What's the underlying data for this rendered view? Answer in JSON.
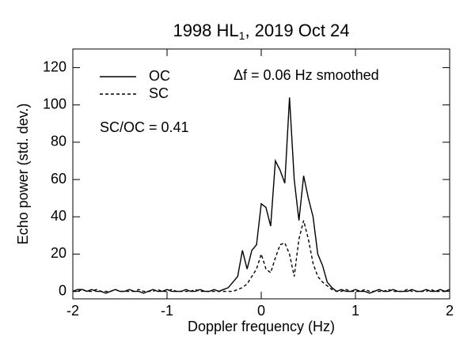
{
  "chart_data": {
    "type": "line",
    "title_parts": [
      "1998 HL",
      "1",
      ", 2019 Oct 24"
    ],
    "x_label": "Doppler frequency (Hz)",
    "y_label": "Echo power (std. dev.)",
    "annotations": [
      "Δf = 0.06 Hz smoothed",
      "SC/OC = 0.41"
    ],
    "legend": "upper left",
    "xlim": [
      -2,
      2
    ],
    "ylim": [
      -4,
      130
    ],
    "xticks": [
      -2,
      -1,
      0,
      1,
      2
    ],
    "yticks": [
      0,
      20,
      40,
      60,
      80,
      100,
      120
    ],
    "x": [
      -2,
      -1.95,
      -1.9,
      -1.85,
      -1.8,
      -1.75,
      -1.7,
      -1.65,
      -1.6,
      -1.55,
      -1.5,
      -1.45,
      -1.4,
      -1.35,
      -1.3,
      -1.25,
      -1.2,
      -1.15,
      -1.1,
      -1.05,
      -1,
      -0.95,
      -0.9,
      -0.85,
      -0.8,
      -0.75,
      -0.7,
      -0.65,
      -0.6,
      -0.55,
      -0.5,
      -0.45,
      -0.4,
      -0.35,
      -0.3,
      -0.25,
      -0.2,
      -0.15,
      -0.1,
      -0.05,
      0,
      0.05,
      0.1,
      0.15,
      0.2,
      0.25,
      0.3,
      0.35,
      0.4,
      0.45,
      0.5,
      0.55,
      0.6,
      0.65,
      0.7,
      0.75,
      0.8,
      0.85,
      0.9,
      0.95,
      1,
      1.05,
      1.1,
      1.15,
      1.2,
      1.25,
      1.3,
      1.35,
      1.4,
      1.45,
      1.5,
      1.55,
      1.6,
      1.65,
      1.7,
      1.75,
      1.8,
      1.85,
      1.9,
      1.95,
      2
    ],
    "series": [
      {
        "name": "OC",
        "color": "#000000",
        "dash": "solid",
        "values": [
          0,
          1,
          1,
          0,
          1,
          0,
          0,
          -1,
          0,
          1,
          0,
          0,
          1,
          0,
          0,
          -1,
          0,
          1,
          0,
          0,
          1,
          0,
          0,
          0,
          1,
          0,
          0,
          1,
          0,
          0,
          1,
          0,
          1,
          2,
          5,
          8,
          22,
          12,
          22,
          25,
          47,
          45,
          35,
          70,
          65,
          58,
          104,
          60,
          38,
          62,
          50,
          40,
          20,
          14,
          5,
          2,
          0,
          1,
          0,
          0,
          1,
          0,
          0,
          -1,
          0,
          1,
          0,
          0,
          1,
          0,
          0,
          0,
          1,
          0,
          0,
          1,
          0,
          0,
          1,
          0,
          1
        ]
      },
      {
        "name": "SC",
        "color": "#000000",
        "dash": "dashed",
        "values": [
          0,
          0,
          1,
          0,
          0,
          1,
          0,
          0,
          0,
          1,
          0,
          0,
          0,
          0,
          1,
          0,
          0,
          0,
          1,
          0,
          0,
          1,
          0,
          0,
          0,
          0,
          1,
          0,
          0,
          0,
          0,
          0,
          0,
          0,
          0,
          1,
          2,
          4,
          8,
          12,
          20,
          12,
          10,
          18,
          25,
          26,
          20,
          8,
          28,
          38,
          28,
          15,
          8,
          5,
          3,
          1,
          0,
          0,
          1,
          0,
          0,
          0,
          1,
          0,
          0,
          0,
          0,
          1,
          0,
          0,
          0,
          1,
          0,
          0,
          0,
          0,
          1,
          0,
          0,
          0,
          1
        ]
      }
    ]
  }
}
